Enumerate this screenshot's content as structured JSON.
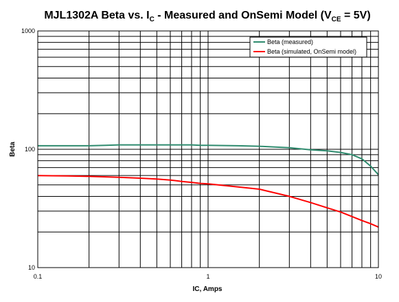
{
  "chart_data": {
    "type": "line",
    "title": {
      "main": "MJL1302A Beta vs. I",
      "sub1": "C",
      "mid": " - Measured and OnSemi Model (V",
      "sub2": "CE",
      "end": " = 5V)"
    },
    "xlabel": "IC, Amps",
    "ylabel": "Beta",
    "xscale": "log",
    "yscale": "log",
    "xlim": [
      0.1,
      10
    ],
    "ylim": [
      10,
      1000
    ],
    "x_tick_labels": [
      "0.1",
      "1",
      "10"
    ],
    "y_tick_labels": [
      "10",
      "100",
      "1000"
    ],
    "grid": true,
    "legend": "top-right",
    "series": [
      {
        "name": "Beta (measured)",
        "color": "#2e8b6e",
        "x": [
          0.1,
          0.15,
          0.2,
          0.25,
          0.3,
          0.4,
          0.5,
          0.6,
          0.7,
          0.8,
          0.9,
          1.0,
          1.5,
          2.0,
          3.0,
          4.0,
          5.0,
          6.0,
          7.0,
          8.0,
          9.0,
          10.0
        ],
        "y": [
          107,
          107,
          107,
          108,
          109,
          109,
          109,
          109,
          109,
          109,
          108,
          108,
          107,
          106,
          103,
          99,
          97,
          94,
          90,
          83,
          72,
          61
        ]
      },
      {
        "name": "Beta (simulated, OnSemi model)",
        "color": "#ff0000",
        "x": [
          0.1,
          0.15,
          0.2,
          0.3,
          0.4,
          0.5,
          0.6,
          0.7,
          0.8,
          0.9,
          1.0,
          1.5,
          2.0,
          3.0,
          4.0,
          5.0,
          6.0,
          7.0,
          8.0,
          9.0,
          10.0
        ],
        "y": [
          60,
          59.5,
          59,
          58,
          57,
          56,
          55,
          53.5,
          52.5,
          51.5,
          51,
          48,
          46,
          40,
          35.5,
          32,
          29.5,
          27,
          25,
          23.5,
          22
        ]
      }
    ]
  }
}
